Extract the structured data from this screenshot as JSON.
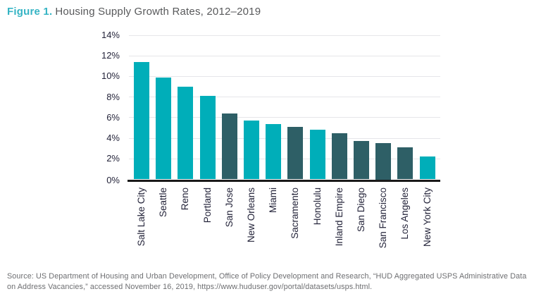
{
  "figure": {
    "label": "Figure 1.",
    "title": "Housing Supply Growth Rates, 2012–2019"
  },
  "chart_data": {
    "type": "bar",
    "title": "Housing Supply Growth Rates, 2012–2019",
    "categories": [
      "Salt Lake City",
      "Seattle",
      "Reno",
      "Portland",
      "San Jose",
      "New Orleans",
      "Miami",
      "Sacramento",
      "Honolulu",
      "Inland Empire",
      "San Diego",
      "San Francisco",
      "Los Angeles",
      "New York City"
    ],
    "values": [
      11.4,
      9.9,
      9.0,
      8.1,
      6.4,
      5.7,
      5.4,
      5.1,
      4.8,
      4.5,
      3.7,
      3.5,
      3.1,
      2.2
    ],
    "values_unit": "%",
    "bar_color_keys": [
      "teal",
      "teal",
      "teal",
      "teal",
      "dark",
      "teal",
      "teal",
      "dark",
      "teal",
      "dark",
      "dark",
      "dark",
      "dark",
      "teal"
    ],
    "palette": {
      "teal": "#00AEB9",
      "dark": "#2E5F66"
    },
    "xlabel": "",
    "ylabel": "",
    "ylim": [
      0,
      14
    ],
    "ytick_step": 2,
    "ytick_labels": [
      "0%",
      "2%",
      "4%",
      "6%",
      "8%",
      "10%",
      "12%",
      "14%"
    ],
    "grid": true,
    "legend": "none",
    "x_labels_rotation_deg": -90
  },
  "source": {
    "text": "Source: US Department of Housing and Urban Development, Office of Policy Development and Research, “HUD Aggregated USPS Administrative Data on Address Vacancies,” accessed November 16, 2019, https://www.huduser.gov/portal/datasets/usps.html."
  },
  "colors": {
    "figure_label": "#35B4C4",
    "title_text": "#58595B",
    "axis_text": "#24243A",
    "gridline": "#E6E6E9",
    "axis_line": "#1A1A1A",
    "source_text": "#6D6E71"
  }
}
